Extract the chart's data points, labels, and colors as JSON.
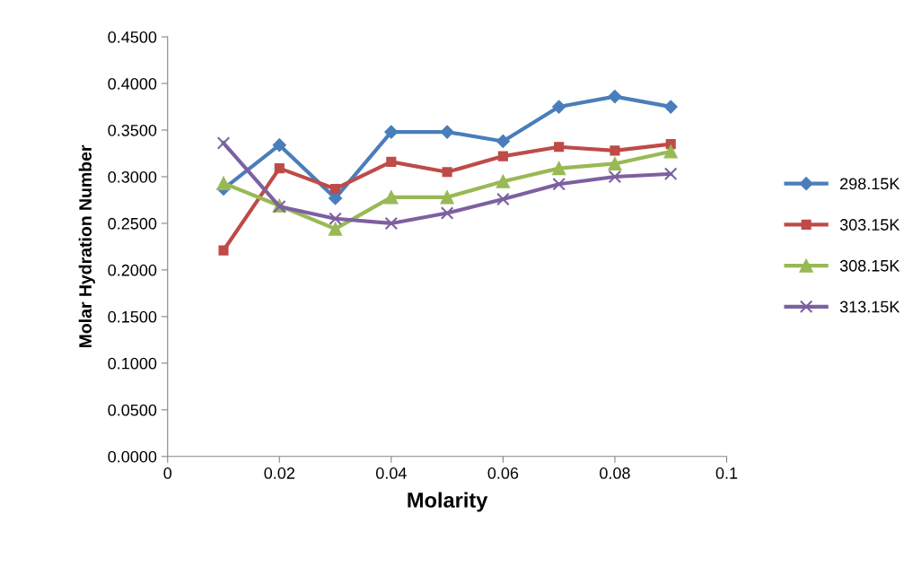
{
  "chart_data": {
    "type": "line",
    "xlabel": "Molarity",
    "ylabel": "Molar Hydration Number",
    "x": [
      0.01,
      0.02,
      0.03,
      0.04,
      0.05,
      0.06,
      0.07,
      0.08,
      0.09
    ],
    "series": [
      {
        "name": "298.15K",
        "color": "#4a7ebb",
        "marker": "diamond",
        "values": [
          0.287,
          0.334,
          0.277,
          0.348,
          0.348,
          0.338,
          0.375,
          0.386,
          0.375
        ]
      },
      {
        "name": "303.15K",
        "color": "#be4b48",
        "marker": "square",
        "values": [
          0.221,
          0.309,
          0.287,
          0.316,
          0.305,
          0.322,
          0.332,
          0.328,
          0.335
        ]
      },
      {
        "name": "308.15K",
        "color": "#98b954",
        "marker": "triangle",
        "values": [
          0.293,
          0.269,
          0.244,
          0.278,
          0.278,
          0.295,
          0.309,
          0.314,
          0.327
        ]
      },
      {
        "name": "313.15K",
        "color": "#7d60a0",
        "marker": "cross",
        "values": [
          0.336,
          0.268,
          0.255,
          0.25,
          0.261,
          0.276,
          0.292,
          0.3,
          0.303
        ]
      }
    ],
    "xlim": [
      0,
      0.1
    ],
    "xticks": [
      0,
      0.02,
      0.04,
      0.06,
      0.08,
      0.1
    ],
    "ylim": [
      0,
      0.45
    ],
    "yticks": [
      {
        "value": 0,
        "label": "0.0000"
      },
      {
        "value": 0.05,
        "label": "0.0500"
      },
      {
        "value": 0.1,
        "label": "0.1000"
      },
      {
        "value": 0.15,
        "label": "0.1500"
      },
      {
        "value": 0.2,
        "label": "0.2000"
      },
      {
        "value": 0.25,
        "label": "0.2500"
      },
      {
        "value": 0.3,
        "label": "0.3000"
      },
      {
        "value": 0.35,
        "label": "0.3500"
      },
      {
        "value": 0.4,
        "label": "0.4000"
      },
      {
        "value": 0.45,
        "label": "0.4500"
      }
    ],
    "legend": "right",
    "grid": false,
    "line_style": "solid"
  }
}
